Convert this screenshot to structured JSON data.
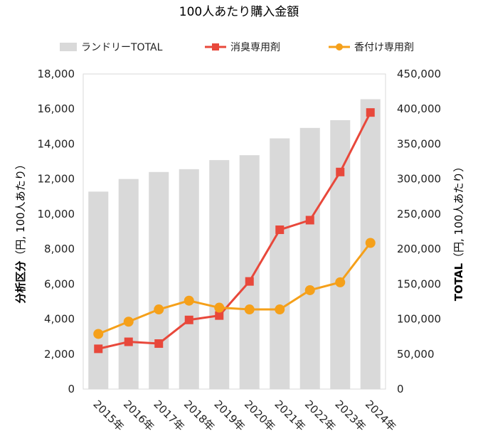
{
  "chart_data": {
    "type": "bar+line",
    "title": "100人あたり購入金額",
    "categories": [
      "2015年",
      "2016年",
      "2017年",
      "2018年",
      "2019年",
      "2020年",
      "2021年",
      "2022年",
      "2023年",
      "2024年"
    ],
    "bar_series": {
      "name": "ランドリーTOTAL",
      "axis": "right",
      "color": "#d9d9d9",
      "values": [
        282000,
        300000,
        310000,
        314000,
        327000,
        334000,
        358000,
        373000,
        384000,
        414000
      ]
    },
    "line_series": [
      {
        "name": "消臭専用剤",
        "axis": "left",
        "color": "#e8483b",
        "marker": "square",
        "values": [
          2300,
          2700,
          2600,
          3950,
          4200,
          6150,
          9100,
          9650,
          12400,
          15800
        ]
      },
      {
        "name": "香付け専用剤",
        "axis": "left",
        "color": "#f5a01a",
        "marker": "circle",
        "values": [
          3150,
          3850,
          4550,
          5050,
          4650,
          4550,
          4550,
          5650,
          6100,
          8350
        ]
      }
    ],
    "y_left": {
      "label_bold": "分析区分",
      "label_paren": "（円, 100人あたり）",
      "min": 0,
      "max": 18000,
      "step": 2000,
      "ticks": [
        "0",
        "2,000",
        "4,000",
        "6,000",
        "8,000",
        "10,000",
        "12,000",
        "14,000",
        "16,000",
        "18,000"
      ]
    },
    "y_right": {
      "label_bold": "TOTAL",
      "label_paren": "（円, 100人あたり）",
      "min": 0,
      "max": 450000,
      "step": 50000,
      "ticks": [
        "0",
        "50,000",
        "100,000",
        "150,000",
        "200,000",
        "250,000",
        "300,000",
        "350,000",
        "400,000",
        "450,000"
      ]
    },
    "legend": {
      "position": "top",
      "items": [
        "ランドリーTOTAL",
        "消臭専用剤",
        "香付け専用剤"
      ]
    },
    "grid": false
  }
}
